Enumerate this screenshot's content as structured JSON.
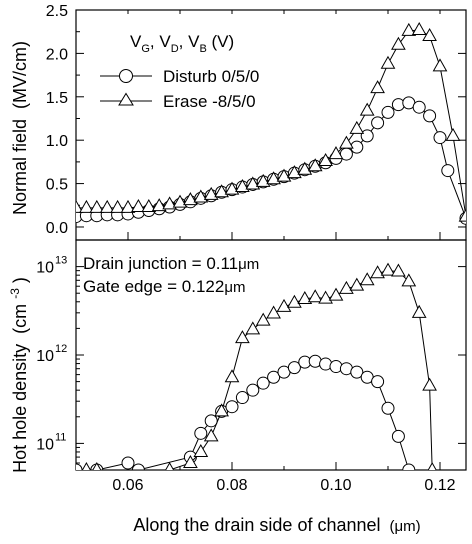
{
  "figure": {
    "xlabel_main": "Along the drain side of  channel",
    "xlabel_unit": "(μm)"
  },
  "chart_data": [
    {
      "type": "line",
      "panel": "top",
      "ylabel_main": "Normal field",
      "ylabel_unit": "(MV/cm)",
      "xlim": [
        0.05,
        0.125
      ],
      "ylim": [
        -0.15,
        2.5
      ],
      "yticks": [
        0.0,
        0.5,
        1.0,
        1.5,
        2.0,
        2.5
      ],
      "ytick_labels": [
        "0.0",
        "0.5",
        "1.0",
        "1.5",
        "2.0",
        "2.5"
      ],
      "legend": {
        "title_parts": [
          "V",
          "G",
          ", V",
          "D",
          ", V",
          "B",
          " (V)"
        ],
        "placement": "top-left"
      },
      "series": [
        {
          "name": "Disturb 0/5/0",
          "marker": "circle",
          "x": [
            0.05,
            0.052,
            0.054,
            0.056,
            0.058,
            0.06,
            0.062,
            0.064,
            0.066,
            0.068,
            0.07,
            0.072,
            0.074,
            0.076,
            0.078,
            0.08,
            0.082,
            0.084,
            0.086,
            0.088,
            0.09,
            0.092,
            0.094,
            0.096,
            0.098,
            0.1,
            0.102,
            0.104,
            0.106,
            0.108,
            0.11,
            0.112,
            0.114,
            0.116,
            0.118,
            0.12,
            0.1215,
            0.125
          ],
          "y": [
            0.12,
            0.13,
            0.13,
            0.14,
            0.14,
            0.15,
            0.17,
            0.19,
            0.21,
            0.23,
            0.26,
            0.29,
            0.33,
            0.36,
            0.4,
            0.43,
            0.46,
            0.49,
            0.52,
            0.55,
            0.58,
            0.62,
            0.66,
            0.7,
            0.74,
            0.79,
            0.84,
            0.92,
            1.05,
            1.2,
            1.32,
            1.41,
            1.43,
            1.38,
            1.28,
            1.03,
            0.65,
            0.1
          ]
        },
        {
          "name": "Erase -8/5/0",
          "marker": "triangle",
          "x": [
            0.05,
            0.052,
            0.054,
            0.056,
            0.058,
            0.06,
            0.062,
            0.064,
            0.066,
            0.068,
            0.07,
            0.072,
            0.074,
            0.076,
            0.078,
            0.08,
            0.082,
            0.084,
            0.086,
            0.088,
            0.09,
            0.092,
            0.094,
            0.096,
            0.098,
            0.1,
            0.102,
            0.104,
            0.106,
            0.108,
            0.11,
            0.112,
            0.114,
            0.116,
            0.118,
            0.12,
            0.1225,
            0.125
          ],
          "y": [
            0.22,
            0.22,
            0.22,
            0.22,
            0.22,
            0.22,
            0.23,
            0.23,
            0.24,
            0.26,
            0.28,
            0.31,
            0.34,
            0.37,
            0.4,
            0.43,
            0.46,
            0.49,
            0.52,
            0.55,
            0.58,
            0.62,
            0.66,
            0.7,
            0.76,
            0.84,
            0.96,
            1.13,
            1.34,
            1.6,
            1.88,
            2.1,
            2.26,
            2.27,
            2.2,
            1.85,
            1.05,
            0.12
          ]
        }
      ]
    },
    {
      "type": "line",
      "panel": "bottom",
      "yscale": "log",
      "ylabel_main": "Hot hole density",
      "ylabel_unit_parts": [
        "(cm",
        "-3",
        ")"
      ],
      "xlim": [
        0.05,
        0.125
      ],
      "ylim": [
        50000000000,
        20000000000000
      ],
      "xticks": [
        0.06,
        0.08,
        0.1,
        0.12
      ],
      "xtick_labels": [
        "0.06",
        "0.08",
        "0.10",
        "0.12"
      ],
      "yticks": [
        100000000000,
        1000000000000,
        10000000000000
      ],
      "ytick_labels": [
        {
          "base": "10",
          "exp": "11"
        },
        {
          "base": "10",
          "exp": "12"
        },
        {
          "base": "10",
          "exp": "13"
        }
      ],
      "annotations": [
        "Drain junction = 0.11",
        "μm",
        "Gate edge = 0.122",
        "μm"
      ],
      "series": [
        {
          "name": "Disturb 0/5/0",
          "marker": "circle",
          "x": [
            0.05,
            0.054,
            0.06,
            0.062,
            0.072,
            0.074,
            0.076,
            0.078,
            0.08,
            0.082,
            0.084,
            0.086,
            0.088,
            0.09,
            0.092,
            0.094,
            0.096,
            0.098,
            0.1,
            0.102,
            0.104,
            0.106,
            0.108,
            0.11,
            0.112,
            0.114
          ],
          "y": [
            50000000000,
            50000000000,
            60000000000,
            50000000000,
            70000000000,
            130000000000,
            180000000000,
            230000000000,
            260000000000,
            330000000000,
            400000000000,
            480000000000,
            560000000000,
            640000000000,
            720000000000,
            830000000000,
            850000000000,
            790000000000,
            740000000000,
            700000000000,
            640000000000,
            560000000000,
            500000000000,
            250000000000,
            120000000000,
            50000000000
          ]
        },
        {
          "name": "Erase -8/5/0",
          "marker": "triangle",
          "x": [
            0.052,
            0.054,
            0.068,
            0.072,
            0.074,
            0.076,
            0.078,
            0.08,
            0.082,
            0.084,
            0.086,
            0.088,
            0.09,
            0.092,
            0.094,
            0.096,
            0.098,
            0.1,
            0.102,
            0.104,
            0.106,
            0.108,
            0.11,
            0.112,
            0.114,
            0.116,
            0.118,
            0.1185
          ],
          "y": [
            50000000000,
            50000000000,
            50000000000,
            60000000000,
            80000000000,
            120000000000,
            230000000000,
            560000000000,
            1550000000000,
            1950000000000,
            2450000000000,
            2950000000000,
            3500000000000,
            3900000000000,
            4300000000000,
            4500000000000,
            4350000000000,
            4700000000000,
            5600000000000,
            6100000000000,
            7000000000000,
            8400000000000,
            9000000000000,
            8800000000000,
            6800000000000,
            3000000000000,
            450000000000,
            50000000000
          ]
        }
      ]
    }
  ]
}
